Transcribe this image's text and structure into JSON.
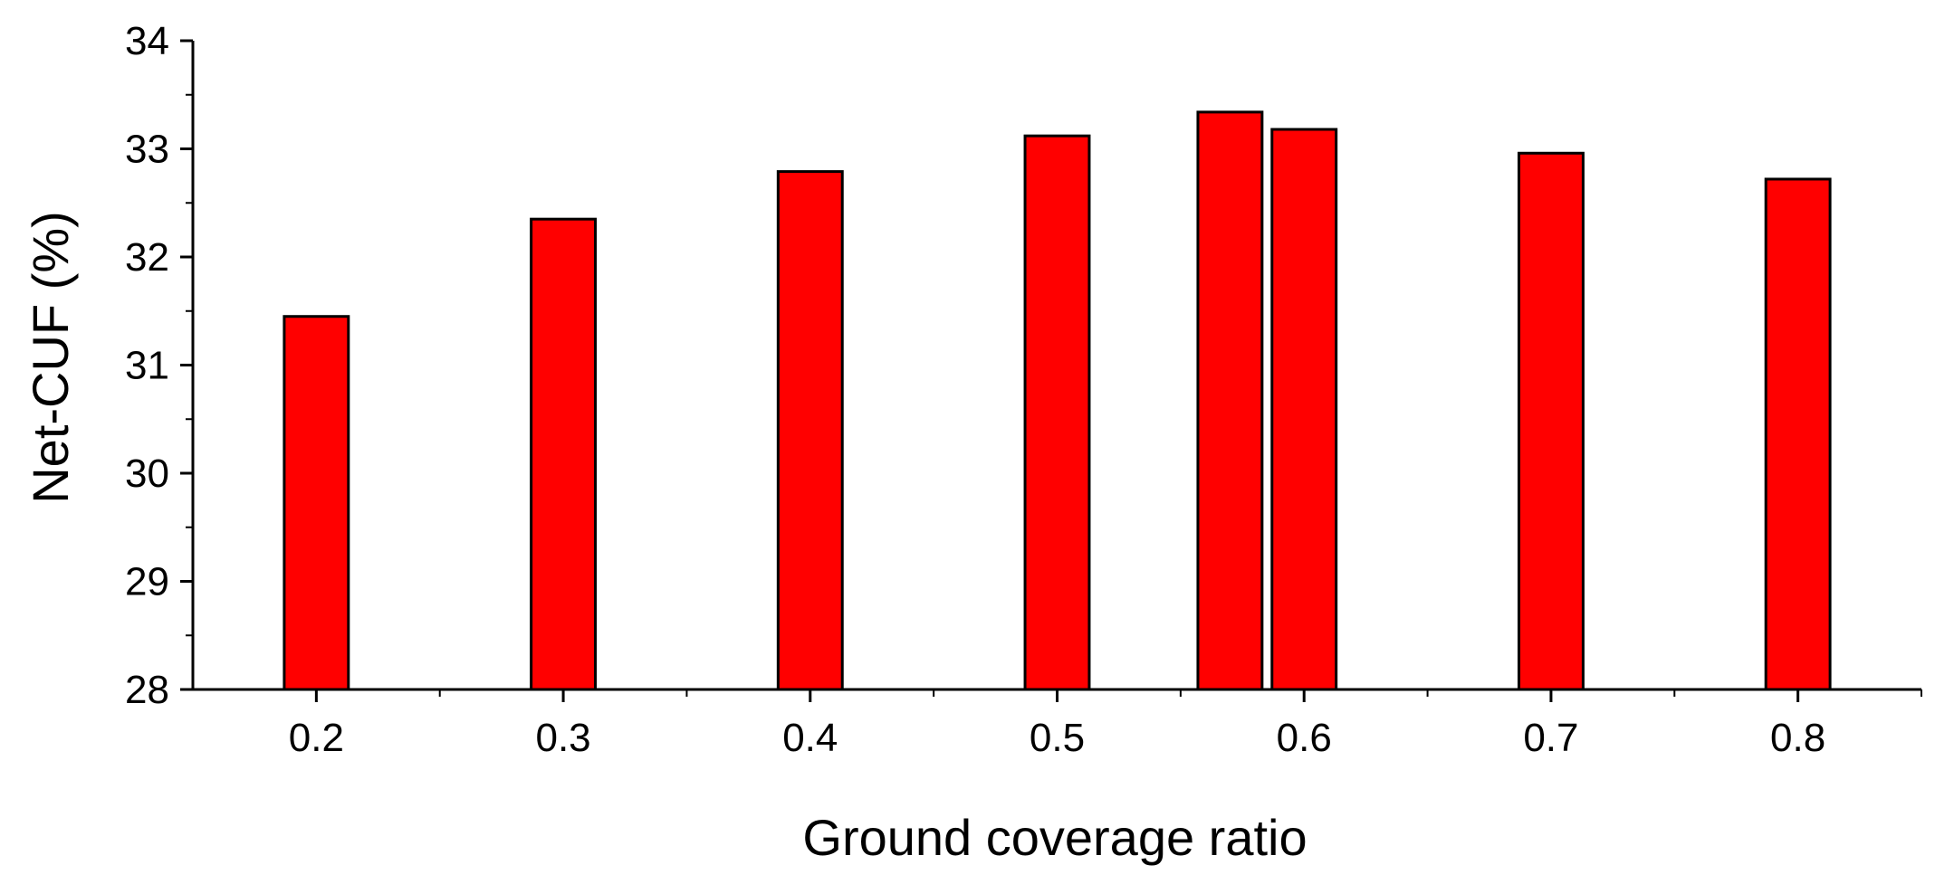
{
  "chart_data": {
    "type": "bar",
    "title": "",
    "xlabel": "Ground coverage ratio",
    "ylabel": "Net-CUF (%)",
    "ylim": [
      28,
      34
    ],
    "xlim": [
      0.15,
      0.85
    ],
    "yticks": [
      28,
      29,
      30,
      31,
      32,
      33,
      34
    ],
    "xticks": [
      0.2,
      0.3,
      0.4,
      0.5,
      0.6,
      0.7,
      0.8
    ],
    "xtick_labels": [
      "0.2",
      "0.3",
      "0.4",
      "0.5",
      "0.6",
      "0.7",
      "0.8"
    ],
    "bar_width": 0.026,
    "grid": false,
    "legend": "none",
    "bar_color": "#ff0000",
    "x": [
      0.2,
      0.3,
      0.4,
      0.5,
      0.57,
      0.6,
      0.7,
      0.8
    ],
    "values": [
      31.45,
      32.35,
      32.79,
      33.12,
      33.34,
      33.18,
      32.96,
      32.72
    ]
  }
}
